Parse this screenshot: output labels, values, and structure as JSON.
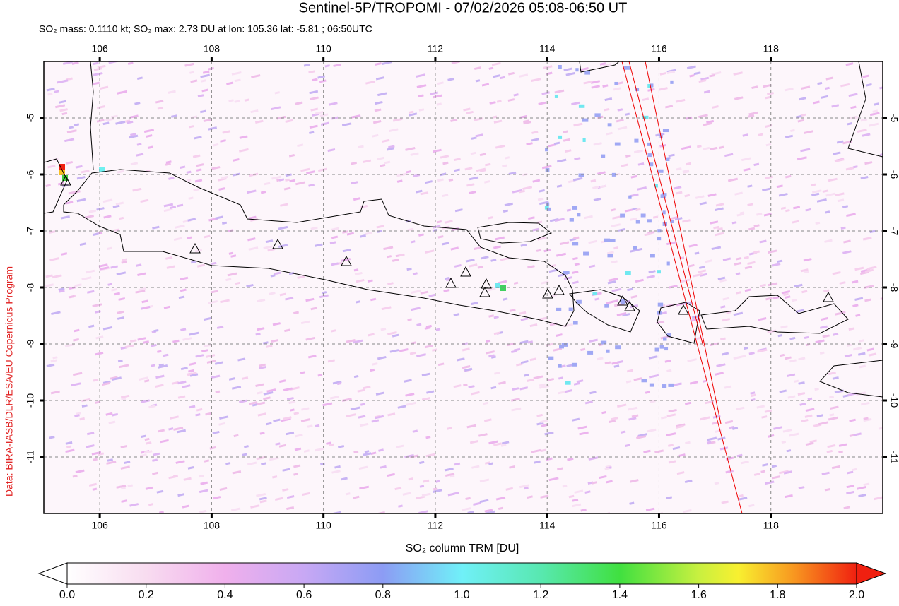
{
  "title": "Sentinel-5P/TROPOMI - 07/02/2026 05:08-06:50 UT",
  "subtitle": "SO₂ mass: 0.1110 kt; SO₂ max: 2.73 DU at lon: 105.36 lat: -5.81 ; 06:50UTC",
  "map": {
    "lonlim": [
      105,
      120
    ],
    "latlim": [
      -12,
      -4
    ],
    "lonticks": [
      106,
      108,
      110,
      112,
      114,
      116,
      118
    ],
    "latticks": [
      -5,
      -6,
      -7,
      -8,
      -9,
      -10,
      -11
    ],
    "grid": true
  },
  "colorbar": {
    "label": "SO₂ column TRM [DU]",
    "lim": [
      0,
      2
    ],
    "ticks": [
      {
        "value": 0,
        "label": "0.0"
      },
      {
        "value": 0.2,
        "label": "0.2"
      },
      {
        "value": 0.4,
        "label": "0.4"
      },
      {
        "value": 0.6,
        "label": "0.6"
      },
      {
        "value": 0.8,
        "label": "0.8"
      },
      {
        "value": 1,
        "label": "1.0"
      },
      {
        "value": 1.2,
        "label": "1.2"
      },
      {
        "value": 1.4,
        "label": "1.4"
      },
      {
        "value": 1.6,
        "label": "1.6"
      },
      {
        "value": 1.8,
        "label": "1.8"
      },
      {
        "value": 2,
        "label": "2.0"
      }
    ]
  },
  "credit": "Data: BIRA-IASB/DLR/ESA/EU Copernicus Program"
}
